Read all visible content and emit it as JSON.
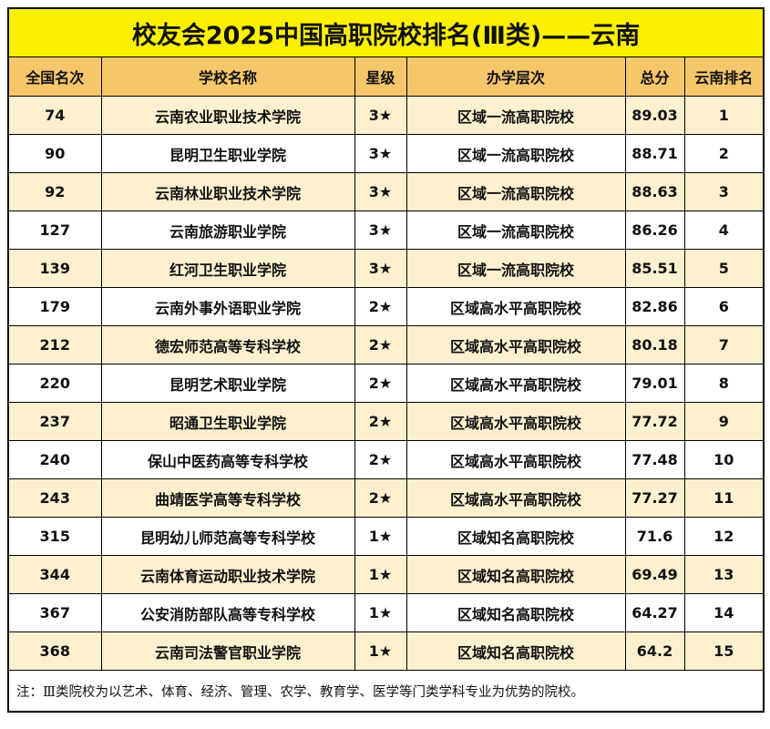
{
  "title": "校友会2025中国高职院校排名(Ⅲ类)——云南",
  "table": {
    "headers": [
      "全国名次",
      "学校名称",
      "星级",
      "办学层次",
      "总分",
      "云南排名"
    ],
    "rows": [
      [
        "74",
        "云南农业职业技术学院",
        "3★",
        "区域一流高职院校",
        "89.03",
        "1"
      ],
      [
        "90",
        "昆明卫生职业学院",
        "3★",
        "区域一流高职院校",
        "88.71",
        "2"
      ],
      [
        "92",
        "云南林业职业技术学院",
        "3★",
        "区域一流高职院校",
        "88.63",
        "3"
      ],
      [
        "127",
        "云南旅游职业学院",
        "3★",
        "区域一流高职院校",
        "86.26",
        "4"
      ],
      [
        "139",
        "红河卫生职业学院",
        "3★",
        "区域一流高职院校",
        "85.51",
        "5"
      ],
      [
        "179",
        "云南外事外语职业学院",
        "2★",
        "区域高水平高职院校",
        "82.86",
        "6"
      ],
      [
        "212",
        "德宏师范高等专科学校",
        "2★",
        "区域高水平高职院校",
        "80.18",
        "7"
      ],
      [
        "220",
        "昆明艺术职业学院",
        "2★",
        "区域高水平高职院校",
        "79.01",
        "8"
      ],
      [
        "237",
        "昭通卫生职业学院",
        "2★",
        "区域高水平高职院校",
        "77.72",
        "9"
      ],
      [
        "240",
        "保山中医药高等专科学校",
        "2★",
        "区域高水平高职院校",
        "77.48",
        "10"
      ],
      [
        "243",
        "曲靖医学高等专科学校",
        "2★",
        "区域高水平高职院校",
        "77.27",
        "11"
      ],
      [
        "315",
        "昆明幼儿师范高等专科学校",
        "1★",
        "区域知名高职院校",
        "71.6",
        "12"
      ],
      [
        "344",
        "云南体育运动职业技术学院",
        "1★",
        "区域知名高职院校",
        "69.49",
        "13"
      ],
      [
        "367",
        "公安消防部队高等专科学校",
        "1★",
        "区域知名高职院校",
        "64.27",
        "14"
      ],
      [
        "368",
        "云南司法警官职业学院",
        "1★",
        "区域知名高职院校",
        "64.2",
        "15"
      ]
    ]
  },
  "note": "注：Ⅲ类院校为以艺术、体育、经济、管理、农学、教育学、医学等门类学科专业为优势的院校。"
}
